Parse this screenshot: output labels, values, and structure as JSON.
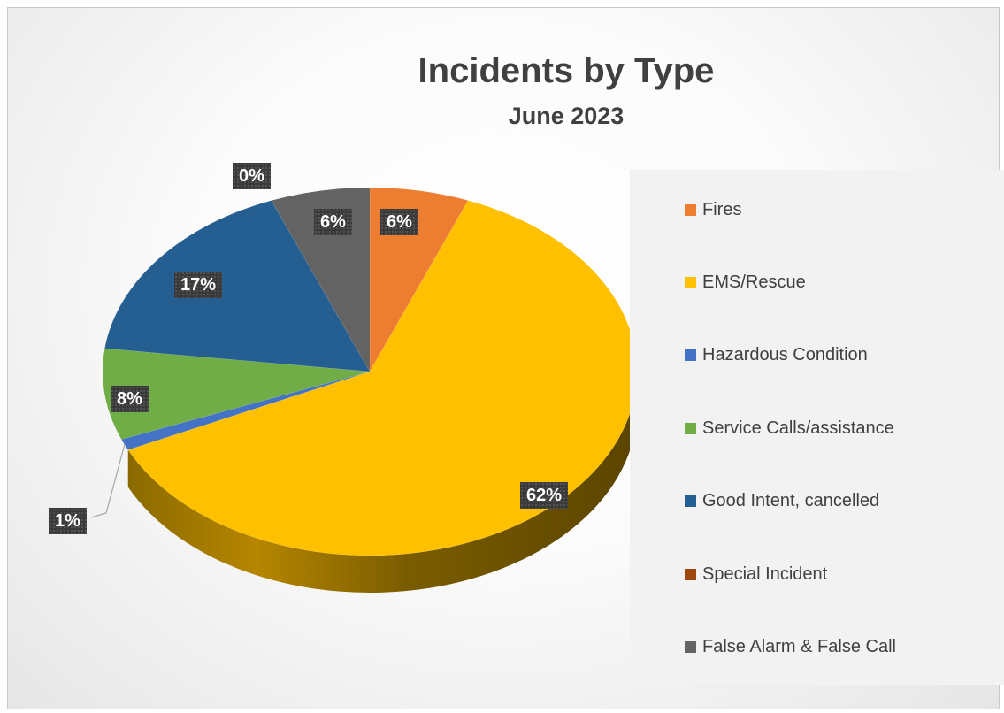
{
  "chart_data": {
    "type": "pie",
    "title": "Incidents by Type",
    "subtitle": "June 2023",
    "categories": [
      "Fires",
      "EMS/Rescue",
      "Hazardous Condition",
      "Service Calls/assistance",
      "Good Intent, cancelled",
      "Special Incident",
      "False Alarm & False Call"
    ],
    "values": [
      6,
      62,
      1,
      8,
      17,
      0,
      6
    ],
    "data_labels": [
      "6%",
      "62%",
      "1%",
      "8%",
      "17%",
      "0%",
      "6%"
    ],
    "colors": [
      "#ED7D31",
      "#FFC000",
      "#4472C4",
      "#70AD47",
      "#255E91",
      "#9E480E",
      "#636363"
    ],
    "legend_position": "right"
  }
}
